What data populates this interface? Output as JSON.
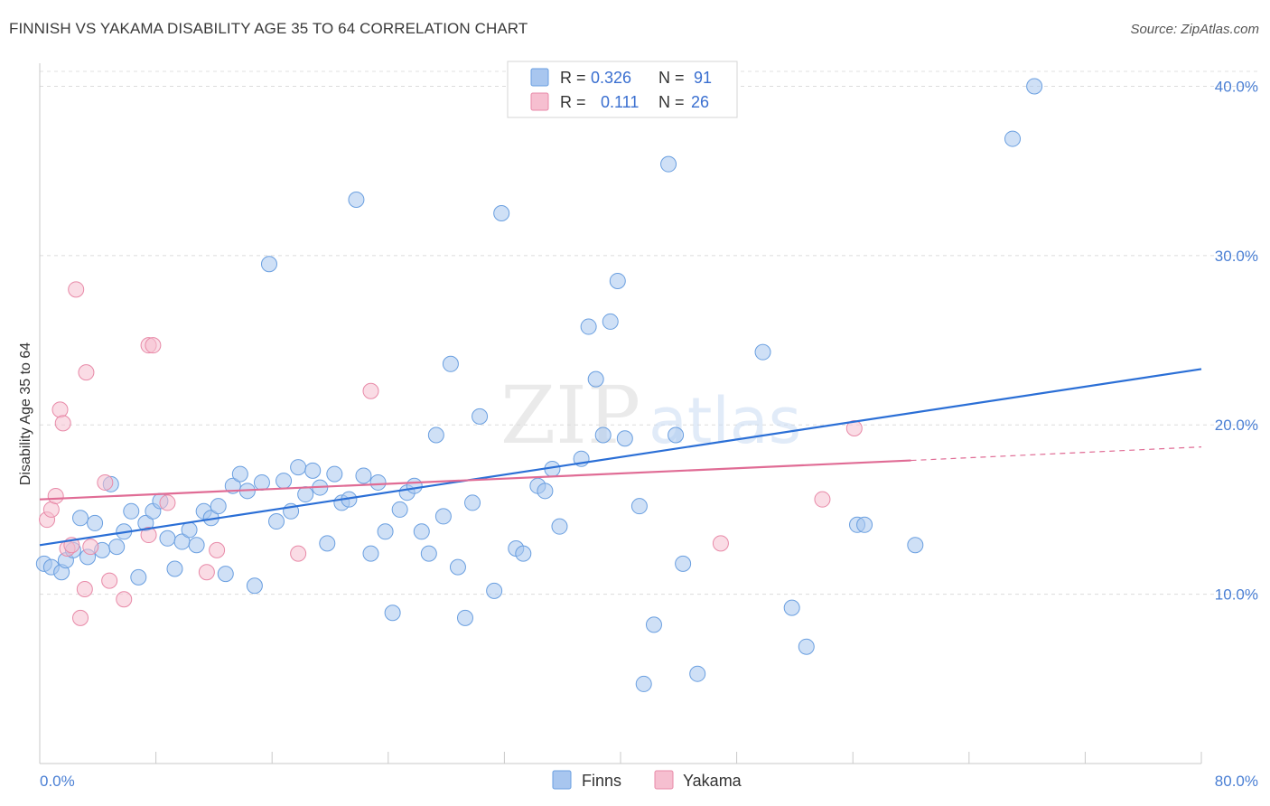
{
  "header": {
    "title": "FINNISH VS YAKAMA DISABILITY AGE 35 TO 64 CORRELATION CHART",
    "source": "Source: ZipAtlas.com"
  },
  "watermark": {
    "zip": "ZIP",
    "atlas": "atlas"
  },
  "legend_top": [
    {
      "r_label": "R =",
      "r_value": "0.326",
      "n_label": "N =",
      "n_value": "91",
      "color": "#a8c6ef",
      "stroke": "#6a9fe0"
    },
    {
      "r_label": "R =",
      "r_value": "0.111",
      "n_label": "N =",
      "n_value": "26",
      "color": "#f6bfd0",
      "stroke": "#e88aa8"
    }
  ],
  "legend_bottom": [
    {
      "label": "Finns",
      "color": "#a8c6ef",
      "stroke": "#6a9fe0"
    },
    {
      "label": "Yakama",
      "color": "#f6bfd0",
      "stroke": "#e88aa8"
    }
  ],
  "chart_data": {
    "type": "scatter",
    "title": "FINNISH VS YAKAMA DISABILITY AGE 35 TO 64 CORRELATION CHART",
    "xlabel": "",
    "ylabel": "Disability Age 35 to 64",
    "xlim": [
      0,
      80
    ],
    "ylim": [
      0,
      42
    ],
    "x_tick_labels": [
      "0.0%",
      "80.0%"
    ],
    "y_ticks": [
      10,
      20,
      30,
      40
    ],
    "y_tick_labels": [
      "10.0%",
      "20.0%",
      "30.0%",
      "40.0%"
    ],
    "grid": true,
    "series": [
      {
        "name": "Finns",
        "color": "#6a9fe0",
        "fill": "#a8c6ef",
        "trend": {
          "x": [
            0,
            80
          ],
          "y": [
            12.9,
            23.3
          ],
          "color": "#2b6fd6"
        },
        "points": [
          [
            0.3,
            11.8
          ],
          [
            0.8,
            11.6
          ],
          [
            1.5,
            11.3
          ],
          [
            1.8,
            12.0
          ],
          [
            2.3,
            12.6
          ],
          [
            2.8,
            14.5
          ],
          [
            3.3,
            12.2
          ],
          [
            3.8,
            14.2
          ],
          [
            4.3,
            12.6
          ],
          [
            4.9,
            16.5
          ],
          [
            5.3,
            12.8
          ],
          [
            5.8,
            13.7
          ],
          [
            6.3,
            14.9
          ],
          [
            6.8,
            11.0
          ],
          [
            7.3,
            14.2
          ],
          [
            7.8,
            14.9
          ],
          [
            8.3,
            15.5
          ],
          [
            8.8,
            13.3
          ],
          [
            9.3,
            11.5
          ],
          [
            9.8,
            13.1
          ],
          [
            10.3,
            13.8
          ],
          [
            10.8,
            12.9
          ],
          [
            11.3,
            14.9
          ],
          [
            11.8,
            14.5
          ],
          [
            12.3,
            15.2
          ],
          [
            12.8,
            11.2
          ],
          [
            13.3,
            16.4
          ],
          [
            13.8,
            17.1
          ],
          [
            14.3,
            16.1
          ],
          [
            14.8,
            10.5
          ],
          [
            15.3,
            16.6
          ],
          [
            15.8,
            29.5
          ],
          [
            16.3,
            14.3
          ],
          [
            16.8,
            16.7
          ],
          [
            17.3,
            14.9
          ],
          [
            17.8,
            17.5
          ],
          [
            18.3,
            15.9
          ],
          [
            18.8,
            17.3
          ],
          [
            19.3,
            16.3
          ],
          [
            19.8,
            13.0
          ],
          [
            20.3,
            17.1
          ],
          [
            20.8,
            15.4
          ],
          [
            21.3,
            15.6
          ],
          [
            21.8,
            33.3
          ],
          [
            22.3,
            17.0
          ],
          [
            22.8,
            12.4
          ],
          [
            23.3,
            16.6
          ],
          [
            23.8,
            13.7
          ],
          [
            24.3,
            8.9
          ],
          [
            24.8,
            15.0
          ],
          [
            25.3,
            16.0
          ],
          [
            25.8,
            16.4
          ],
          [
            26.3,
            13.7
          ],
          [
            26.8,
            12.4
          ],
          [
            27.3,
            19.4
          ],
          [
            27.8,
            14.6
          ],
          [
            28.3,
            23.6
          ],
          [
            28.8,
            11.6
          ],
          [
            29.3,
            8.6
          ],
          [
            29.8,
            15.4
          ],
          [
            30.3,
            20.5
          ],
          [
            31.3,
            10.2
          ],
          [
            31.8,
            32.5
          ],
          [
            32.8,
            12.7
          ],
          [
            33.3,
            12.4
          ],
          [
            34.3,
            16.4
          ],
          [
            34.8,
            16.1
          ],
          [
            35.3,
            17.4
          ],
          [
            35.8,
            14.0
          ],
          [
            37.3,
            18.0
          ],
          [
            37.8,
            25.8
          ],
          [
            38.3,
            22.7
          ],
          [
            38.8,
            19.4
          ],
          [
            39.3,
            26.1
          ],
          [
            39.8,
            28.5
          ],
          [
            40.3,
            19.2
          ],
          [
            41.3,
            15.2
          ],
          [
            42.3,
            8.2
          ],
          [
            43.3,
            35.4
          ],
          [
            43.8,
            19.4
          ],
          [
            44.3,
            11.8
          ],
          [
            45.3,
            5.3
          ],
          [
            49.8,
            24.3
          ],
          [
            51.8,
            9.2
          ],
          [
            52.8,
            6.9
          ],
          [
            56.3,
            14.1
          ],
          [
            56.8,
            14.1
          ],
          [
            60.3,
            12.9
          ],
          [
            67.0,
            36.9
          ],
          [
            68.5,
            40.0
          ],
          [
            41.6,
            4.7
          ]
        ]
      },
      {
        "name": "Yakama",
        "color": "#e88aa8",
        "fill": "#f6bfd0",
        "trend": {
          "x": [
            0,
            60
          ],
          "y": [
            15.6,
            17.9
          ],
          "dash_to": [
            80,
            18.7
          ],
          "color": "#e06c95"
        },
        "points": [
          [
            0.5,
            14.4
          ],
          [
            0.8,
            15.0
          ],
          [
            1.1,
            15.8
          ],
          [
            1.4,
            20.9
          ],
          [
            1.6,
            20.1
          ],
          [
            1.9,
            12.7
          ],
          [
            2.2,
            12.9
          ],
          [
            2.5,
            28.0
          ],
          [
            2.8,
            8.6
          ],
          [
            3.1,
            10.3
          ],
          [
            3.2,
            23.1
          ],
          [
            3.5,
            12.8
          ],
          [
            4.5,
            16.6
          ],
          [
            4.8,
            10.8
          ],
          [
            5.8,
            9.7
          ],
          [
            7.5,
            13.5
          ],
          [
            7.5,
            24.7
          ],
          [
            7.8,
            24.7
          ],
          [
            8.8,
            15.4
          ],
          [
            11.5,
            11.3
          ],
          [
            12.2,
            12.6
          ],
          [
            17.8,
            12.4
          ],
          [
            22.8,
            22.0
          ],
          [
            46.9,
            13.0
          ],
          [
            53.9,
            15.6
          ],
          [
            56.1,
            19.8
          ]
        ]
      }
    ]
  }
}
